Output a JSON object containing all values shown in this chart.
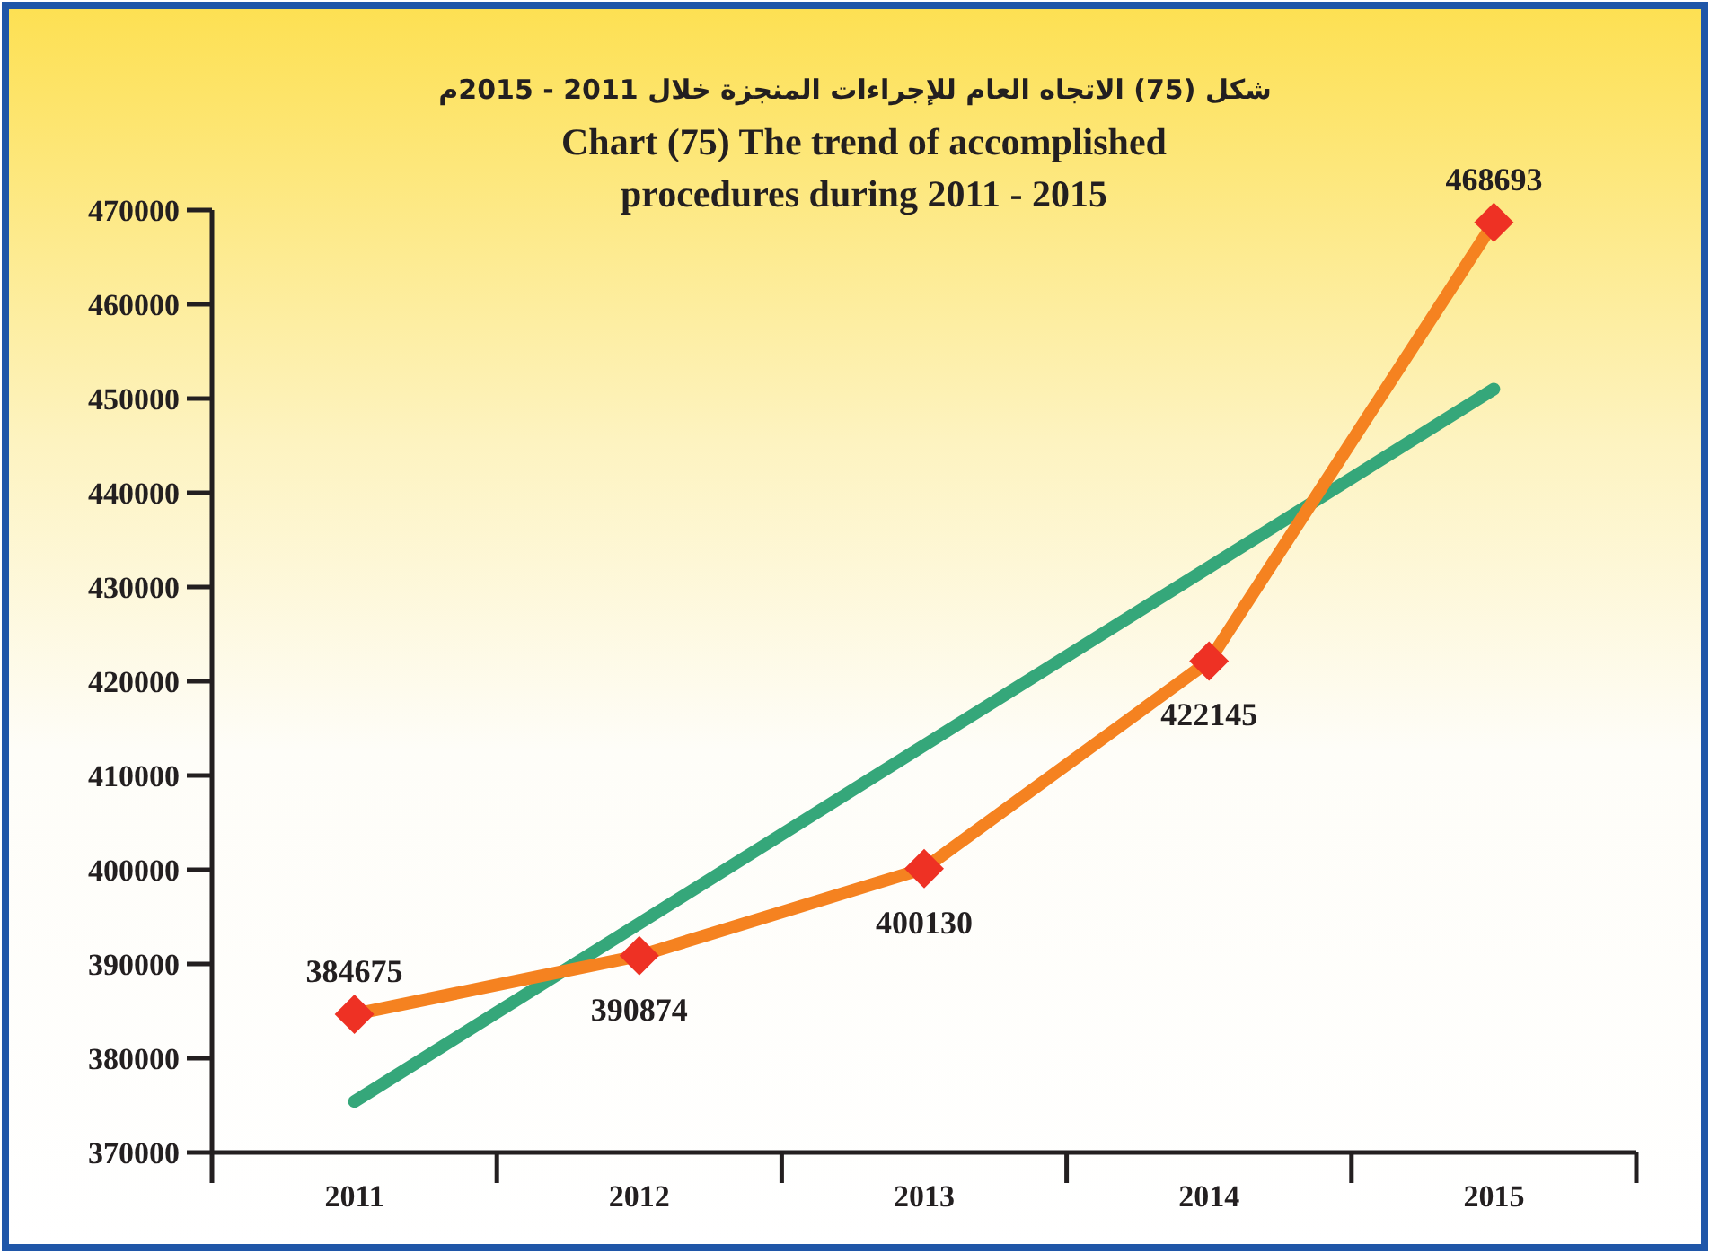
{
  "chart_data": {
    "type": "line",
    "title": "شكل (75) الاتجاه العام للإجراءات المنجزة خلال 2011 - 2015م",
    "subtitle": "Chart (75) The trend of accomplished procedures during 2011 - 2015",
    "categories": [
      "2011",
      "2012",
      "2013",
      "2014",
      "2015"
    ],
    "series": [
      {
        "color": "#f58220",
        "values": [
          384675,
          390874,
          400130,
          422145,
          468693
        ],
        "marker": "diamond",
        "colors": [
          "#ee3124",
          "#ee3124",
          "#ee3124",
          "#ee3124",
          "#ee3124"
        ],
        "data_labels": true
      },
      {
        "type": "line",
        "color": "#35a77a",
        "values": [
          375400,
          394300,
          413200,
          432100,
          451000
        ]
      }
    ],
    "ylim": [
      370000,
      470000
    ],
    "yticks": [
      370000,
      380000,
      390000,
      400000,
      410000,
      420000,
      430000,
      440000,
      450000,
      460000,
      470000
    ],
    "grid": false
  }
}
